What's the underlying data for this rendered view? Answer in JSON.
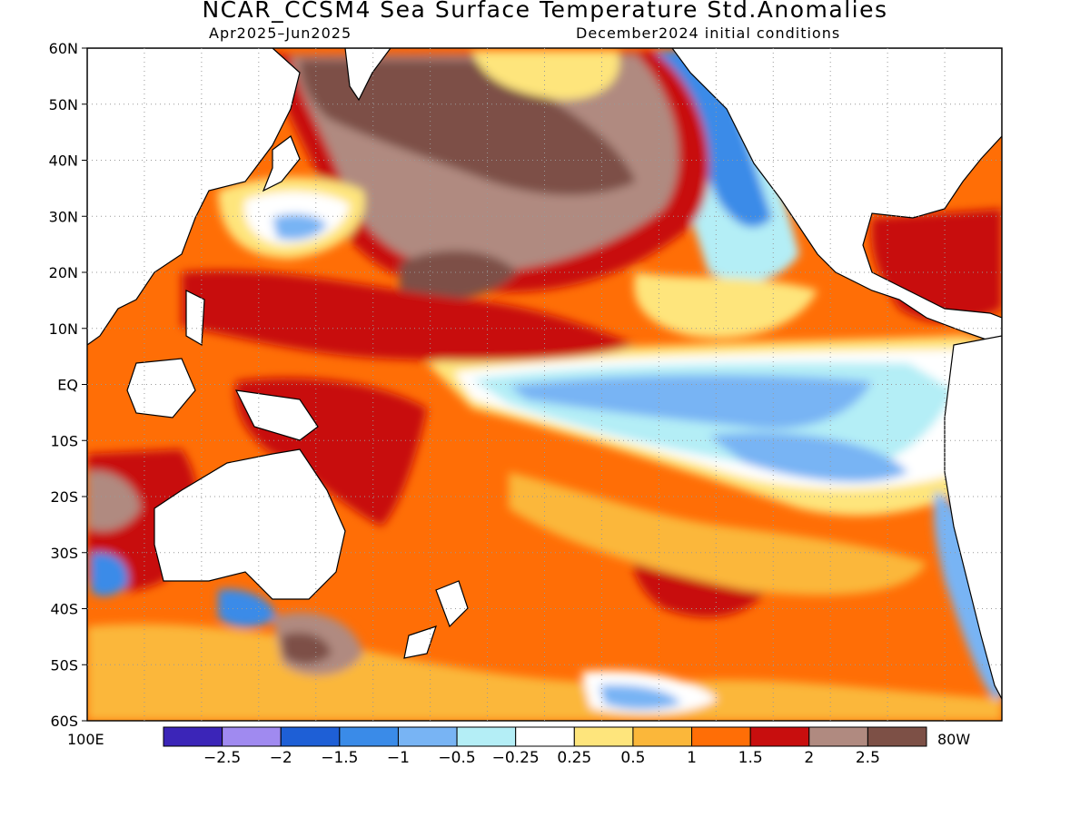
{
  "title": "NCAR_CCSM4 Sea Surface Temperature Std.Anomalies",
  "subtitle_left": "Apr2025–Jun2025",
  "subtitle_right": "December2024 initial conditions",
  "axes": {
    "lat_labels": [
      "60N",
      "50N",
      "40N",
      "30N",
      "20N",
      "10N",
      "EQ",
      "10S",
      "20S",
      "30S",
      "40S",
      "50S",
      "60S"
    ],
    "lon_left": "100E",
    "lon_right": "80W",
    "grid": "dotted"
  },
  "colorbar": {
    "colors": [
      "#3b25b8",
      "#a08af0",
      "#1e5fd6",
      "#3a8be8",
      "#78b4f4",
      "#b4eef6",
      "#ffffff",
      "#fee57c",
      "#fbb73a",
      "#ff6e06",
      "#c80e0e",
      "#b08a80",
      "#7d5046"
    ],
    "labels": [
      "−2.5",
      "−2",
      "−1.5",
      "−1",
      "−0.5",
      "−0.25",
      "0.25",
      "0.5",
      "1",
      "1.5",
      "2",
      "2.5"
    ]
  },
  "legend": {
    "land": "#ffffff",
    "coastline": "#000000"
  }
}
